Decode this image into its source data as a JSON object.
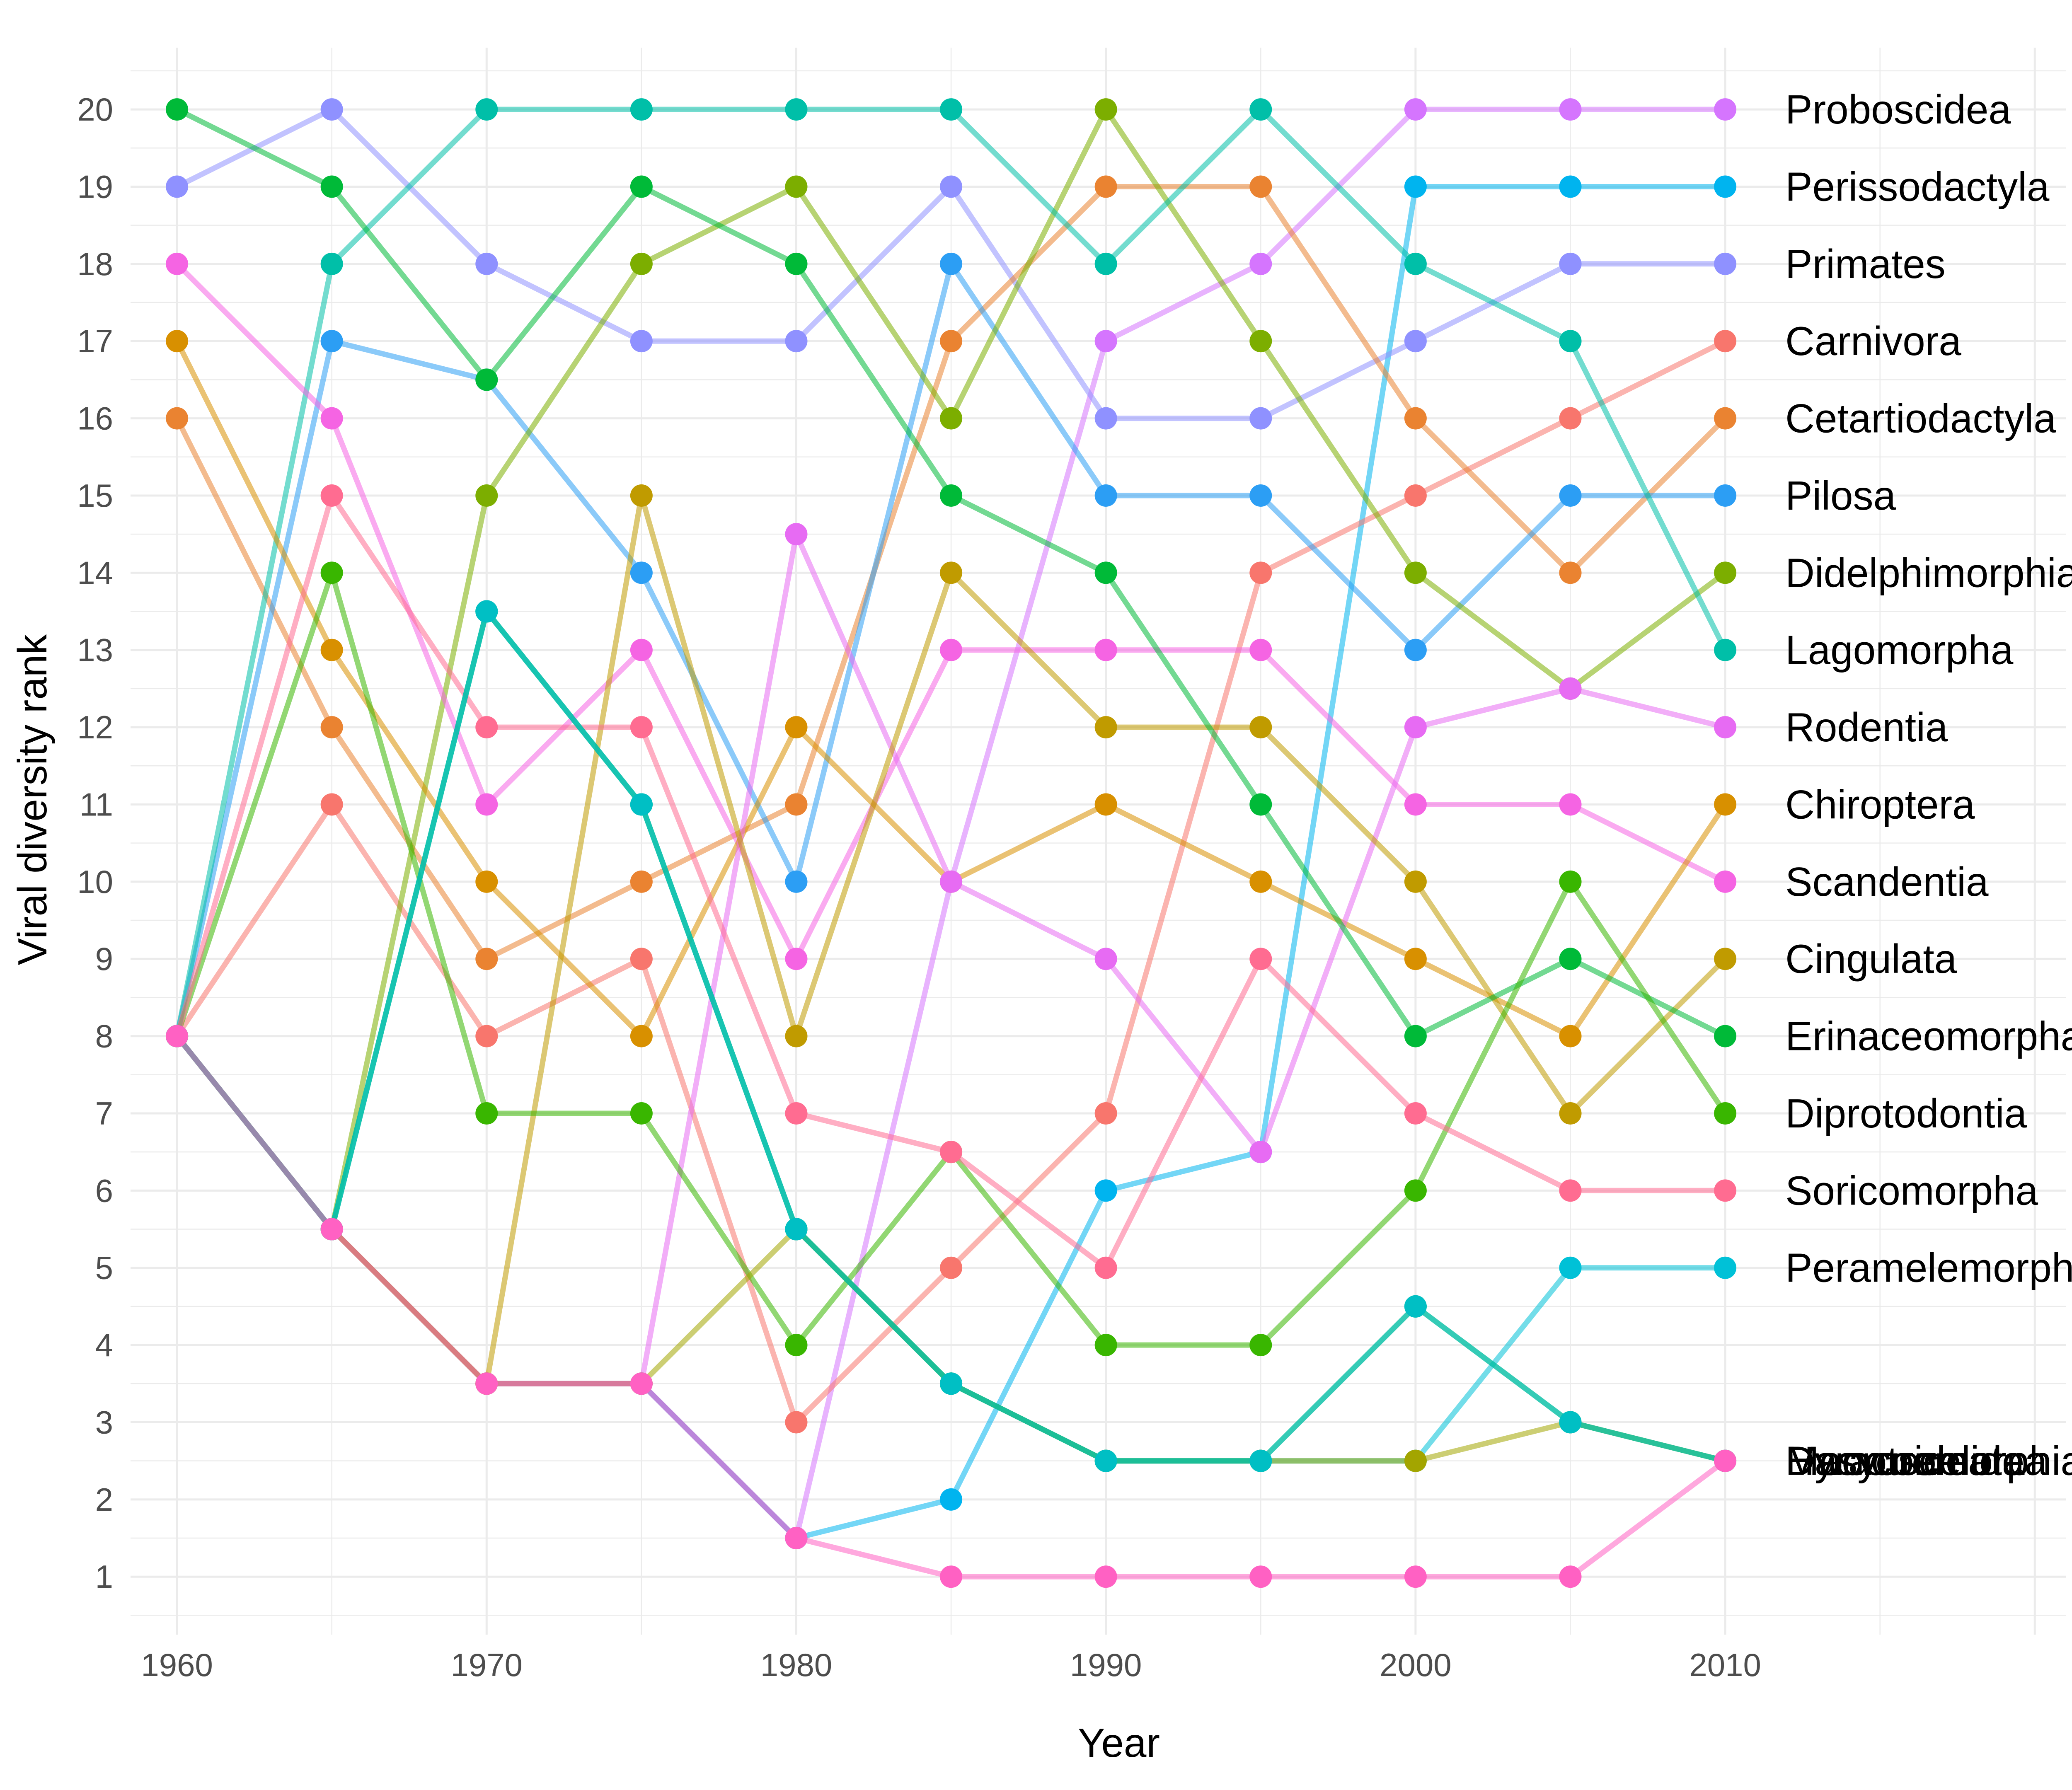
{
  "chart_data": {
    "type": "line",
    "xlabel": "Year",
    "ylabel": "Viral diversity rank",
    "x": [
      1960,
      1965,
      1970,
      1975,
      1980,
      1985,
      1990,
      1995,
      2000,
      2005,
      2010
    ],
    "xticks": [
      1960,
      1970,
      1980,
      1990,
      2000,
      2010
    ],
    "yticks": [
      1,
      2,
      3,
      4,
      5,
      6,
      7,
      8,
      9,
      10,
      11,
      12,
      13,
      14,
      15,
      16,
      17,
      18,
      19,
      20
    ],
    "xlim": [
      1958.5,
      2021
    ],
    "ylim": [
      0.25,
      20.8
    ],
    "grid": true,
    "series": [
      {
        "name": "Proboscidea",
        "color": "#D575FE",
        "values": [
          8,
          5.5,
          3.5,
          3.5,
          1.5,
          10,
          17,
          18,
          20,
          20,
          20
        ]
      },
      {
        "name": "Perissodactyla",
        "color": "#00B4EF",
        "values": [
          8,
          5.5,
          3.5,
          3.5,
          1.5,
          2,
          6,
          6.5,
          19,
          19,
          19
        ]
      },
      {
        "name": "Primates",
        "color": "#8F91FF",
        "values": [
          19,
          20,
          18,
          17,
          17,
          19,
          16,
          16,
          17,
          18,
          18
        ]
      },
      {
        "name": "Carnivora",
        "color": "#F8766D",
        "values": [
          8,
          11,
          8,
          9,
          3,
          5,
          7,
          14,
          15,
          16,
          17
        ]
      },
      {
        "name": "Cetartiodactyla",
        "color": "#EA8331",
        "values": [
          16,
          12,
          9,
          10,
          11,
          17,
          19,
          19,
          16,
          14,
          16
        ]
      },
      {
        "name": "Pilosa",
        "color": "#2C9EF4",
        "values": [
          8,
          17,
          16.5,
          14,
          10,
          18,
          15,
          15,
          13,
          15,
          15
        ]
      },
      {
        "name": "Didelphimorphia",
        "color": "#7CAE00",
        "values": [
          8,
          5.5,
          15,
          18,
          19,
          16,
          20,
          17,
          14,
          12.5,
          14
        ]
      },
      {
        "name": "Lagomorpha",
        "color": "#00BFA8",
        "values": [
          8,
          18,
          20,
          20,
          20,
          20,
          18,
          20,
          18,
          17,
          13
        ]
      },
      {
        "name": "Scandentia",
        "color": "#F564E3",
        "values": [
          18,
          16,
          11,
          13,
          9,
          13,
          13,
          13,
          11,
          11,
          10
        ]
      },
      {
        "name": "Chiroptera",
        "color": "#D89000",
        "values": [
          17,
          13,
          10,
          8,
          12,
          10,
          11,
          10,
          9,
          8,
          11
        ]
      },
      {
        "name": "Rodentia",
        "color": "#E76BF3",
        "values": [
          8,
          5.5,
          3.5,
          3.5,
          14.5,
          10,
          9,
          6.5,
          12,
          12.5,
          12
        ]
      },
      {
        "name": "Cingulata",
        "color": "#C09B00",
        "values": [
          8,
          5.5,
          3.5,
          15,
          8,
          14,
          12,
          12,
          10,
          7,
          9
        ]
      },
      {
        "name": "Erinaceomorpha",
        "color": "#00BA38",
        "values": [
          20,
          19,
          16.5,
          19,
          18,
          15,
          14,
          11,
          8,
          9,
          8
        ]
      },
      {
        "name": "Diprotodontia",
        "color": "#39B600",
        "values": [
          8,
          14,
          7,
          7,
          4,
          6.5,
          4,
          4,
          6,
          10,
          7
        ]
      },
      {
        "name": "Soricomorpha",
        "color": "#FF6C91",
        "values": [
          8,
          15,
          12,
          12,
          7,
          6.5,
          5,
          9,
          7,
          6,
          6
        ]
      },
      {
        "name": "Peramelemorphia",
        "color": "#00C1D7",
        "values": [
          8,
          5.5,
          13.5,
          11,
          5.5,
          3.5,
          2.5,
          2.5,
          2.5,
          5,
          5
        ]
      },
      {
        "name": "Macroscelidea",
        "color": "#A3A500",
        "values": [
          8,
          5.5,
          3.5,
          3.5,
          5.5,
          3.5,
          2.5,
          2.5,
          2.5,
          3,
          2.5
        ]
      },
      {
        "name": "Monotremata",
        "color": "#00BC59",
        "values": [
          8,
          5.5,
          13.5,
          11,
          5.5,
          3.5,
          2.5,
          2.5,
          4.5,
          3,
          2.5
        ]
      },
      {
        "name": "Dasyuromorphia",
        "color": "#00BFC4",
        "values": [
          8,
          5.5,
          13.5,
          11,
          5.5,
          3.5,
          2.5,
          2.5,
          4.5,
          3,
          2.5
        ]
      },
      {
        "name": "Hyracoidea",
        "color": "#FF61C3",
        "values": [
          8,
          5.5,
          3.5,
          3.5,
          1.5,
          1,
          1,
          1,
          1,
          1,
          2.5
        ]
      }
    ]
  }
}
